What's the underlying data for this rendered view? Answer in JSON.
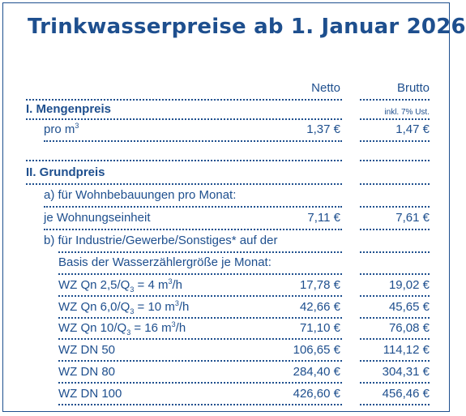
{
  "title": "Trinkwasserpreise ab 1. Januar 2026",
  "columns": {
    "netto": "Netto",
    "brutto": "Brutto"
  },
  "mengenpreis": {
    "heading": "I. Mengenpreis",
    "vat_note": "inkl. 7% Ust.",
    "row_label": "pro m",
    "row_label_sup": "3",
    "netto": "1,37 €",
    "brutto": "1,47 €"
  },
  "grundpreis": {
    "heading": "II. Grundpreis",
    "a_label": "a) für Wohnbebauungen pro Monat:",
    "a_row_label": "je Wohnungseinheit",
    "a_netto": "7,11 €",
    "a_brutto": "7,61 €",
    "b_label_1": "b) für Industrie/Gewerbe/Sonstiges* auf der",
    "b_label_2": "Basis der Wasserzählergröße je Monat:",
    "rows": [
      {
        "pre": "WZ Qn 2,5/Q",
        "sub": "3",
        "mid": " = 4 m",
        "sup": "3",
        "post": "/h",
        "netto": "17,78 €",
        "brutto": "19,02 €"
      },
      {
        "pre": "WZ Qn 6,0/Q",
        "sub": "3",
        "mid": " = 10 m",
        "sup": "3",
        "post": "/h",
        "netto": "42,66 €",
        "brutto": "45,65 €"
      },
      {
        "pre": "WZ Qn 10/Q",
        "sub": "3",
        "mid": " = 16 m",
        "sup": "3",
        "post": "/h",
        "netto": "71,10 €",
        "brutto": "76,08 €"
      },
      {
        "pre": "WZ DN 50",
        "sub": "",
        "mid": "",
        "sup": "",
        "post": "",
        "netto": "106,65 €",
        "brutto": "114,12 €"
      },
      {
        "pre": "WZ DN 80",
        "sub": "",
        "mid": "",
        "sup": "",
        "post": "",
        "netto": "284,40 €",
        "brutto": "304,31 €"
      },
      {
        "pre": "WZ DN 100",
        "sub": "",
        "mid": "",
        "sup": "",
        "post": "",
        "netto": "426,60 €",
        "brutto": "456,46 €"
      }
    ]
  }
}
